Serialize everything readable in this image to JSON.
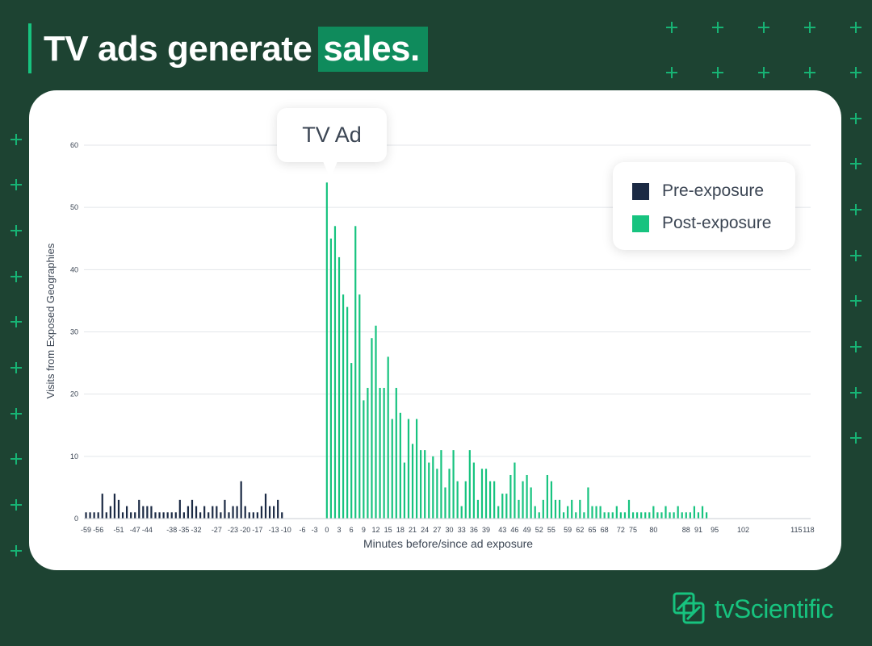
{
  "header": {
    "title_main": "TV ads generate",
    "title_highlight": "sales."
  },
  "brand": {
    "name": "tvScientific"
  },
  "callout": {
    "label": "TV Ad"
  },
  "legend": {
    "items": [
      {
        "label": "Pre-exposure",
        "color": "#1b2a44"
      },
      {
        "label": "Post-exposure",
        "color": "#17c37f"
      }
    ]
  },
  "chart_data": {
    "type": "bar",
    "xlabel": "Minutes before/since ad exposure",
    "ylabel": "Visits from Exposed Geographies",
    "ylim": [
      0,
      60
    ],
    "yticks": [
      0,
      10,
      20,
      30,
      40,
      50,
      60
    ],
    "grid": true,
    "legend_position": "top-right",
    "x_start": -59,
    "x_tick_labels": [
      "-59",
      "-56",
      "-51",
      "-47",
      "-44",
      "-38",
      "-35",
      "-32",
      "-27",
      "-23",
      "-20",
      "-17",
      "-13",
      "-10",
      "-6",
      "-3",
      "0",
      "3",
      "6",
      "9",
      "12",
      "15",
      "18",
      "21",
      "24",
      "27",
      "30",
      "33",
      "36",
      "39",
      "43",
      "46",
      "49",
      "52",
      "55",
      "59",
      "62",
      "65",
      "68",
      "72",
      "75",
      "80",
      "88",
      "91",
      "95",
      "102",
      "115",
      "118"
    ],
    "series": [
      {
        "name": "Pre-exposure",
        "color": "#1b2a44",
        "x_start": -59,
        "values": [
          1,
          1,
          1,
          1,
          4,
          1,
          2,
          4,
          3,
          1,
          2,
          1,
          1,
          3,
          2,
          2,
          2,
          1,
          1,
          1,
          1,
          1,
          1,
          3,
          1,
          2,
          3,
          2,
          1,
          2,
          1,
          2,
          2,
          1,
          3,
          1,
          2,
          2,
          6,
          2,
          1,
          1,
          1,
          2,
          4,
          2,
          2,
          3,
          1
        ]
      },
      {
        "name": "Post-exposure",
        "color": "#17c37f",
        "x_start": 0,
        "values": [
          54,
          45,
          47,
          42,
          36,
          34,
          25,
          47,
          36,
          19,
          21,
          29,
          31,
          21,
          21,
          26,
          16,
          21,
          17,
          9,
          16,
          12,
          16,
          11,
          11,
          9,
          10,
          8,
          11,
          5,
          8,
          11,
          6,
          2,
          6,
          11,
          9,
          3,
          8,
          8,
          6,
          6,
          2,
          4,
          4,
          7,
          9,
          3,
          6,
          7,
          5,
          2,
          1,
          3,
          7,
          6,
          3,
          3,
          1,
          2,
          3,
          1,
          3,
          1,
          5,
          2,
          2,
          2,
          1,
          1,
          1,
          2,
          1,
          1,
          3,
          1,
          1,
          1,
          1,
          1,
          2,
          1,
          1,
          2,
          1,
          1,
          2,
          1,
          1,
          1,
          2,
          1,
          2,
          1
        ]
      }
    ]
  }
}
